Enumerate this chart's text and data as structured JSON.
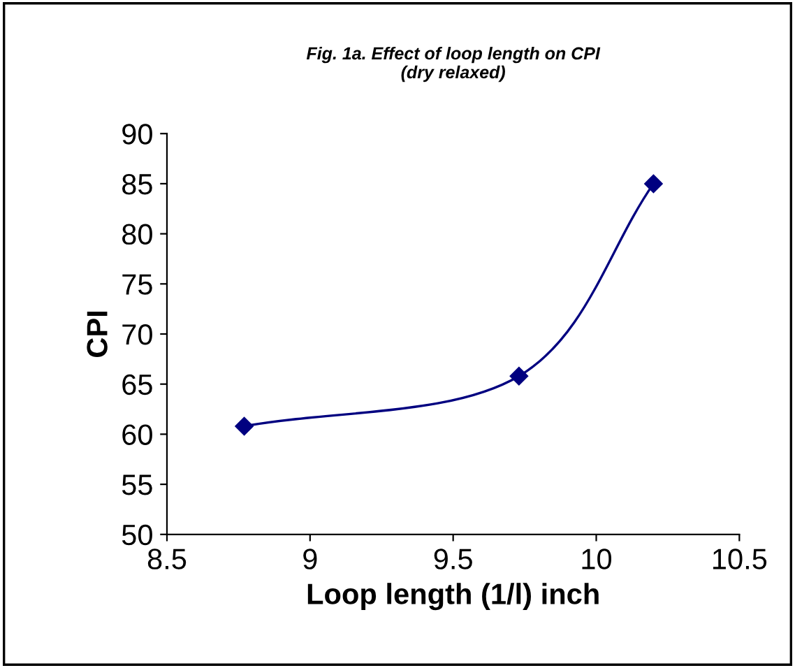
{
  "chart_data": {
    "type": "line",
    "title": "Fig. 1a. Effect of loop length on CPI\n(dry relaxed)",
    "xlabel": "Loop length (1/l) inch",
    "ylabel": "CPI",
    "x": [
      8.77,
      9.73,
      10.2
    ],
    "series": [
      {
        "color": "#000080",
        "values": [
          60.8,
          65.8,
          85
        ]
      }
    ],
    "marker": "diamond",
    "line_style": "solid",
    "xlim": [
      8.5,
      10.5
    ],
    "xticks": [
      8.5,
      9,
      9.5,
      10,
      10.5
    ],
    "ylim": [
      50,
      90
    ],
    "yticks": [
      50,
      55,
      60,
      65,
      70,
      75,
      80,
      85,
      90
    ],
    "grid": false,
    "legend": false
  }
}
